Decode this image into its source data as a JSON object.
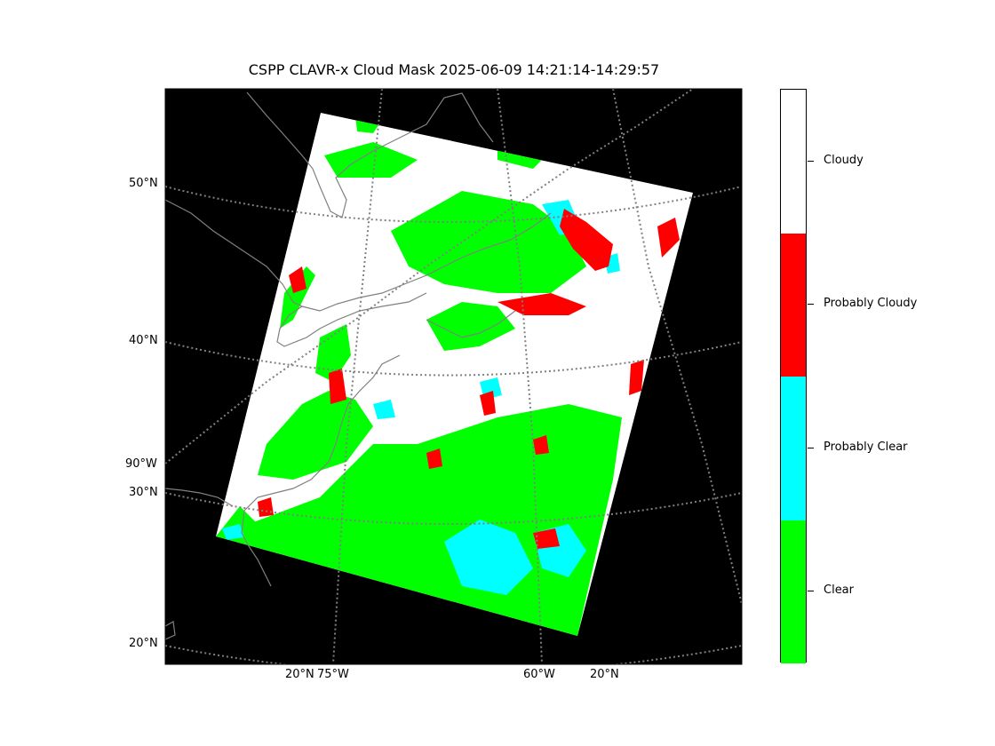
{
  "title": "CSPP CLAVR-x Cloud Mask 2025-06-09 14:21:14-14:29:57",
  "lat_labels": [
    "50°N",
    "40°N",
    "30°N",
    "20°N"
  ],
  "lon_labels": [
    "90°W",
    "75°W",
    "60°W"
  ],
  "bottom_labels": [
    "20°N",
    "20°N"
  ],
  "legend": {
    "categories": [
      {
        "label": "Cloudy",
        "color": "#ffffff"
      },
      {
        "label": "Probably Cloudy",
        "color": "#ff0000"
      },
      {
        "label": "Probably Clear",
        "color": "#00ffff"
      },
      {
        "label": "Clear",
        "color": "#00ff00"
      }
    ]
  },
  "colors": {
    "background": "#000000",
    "coastline": "#808080",
    "gridline": "#808080"
  }
}
